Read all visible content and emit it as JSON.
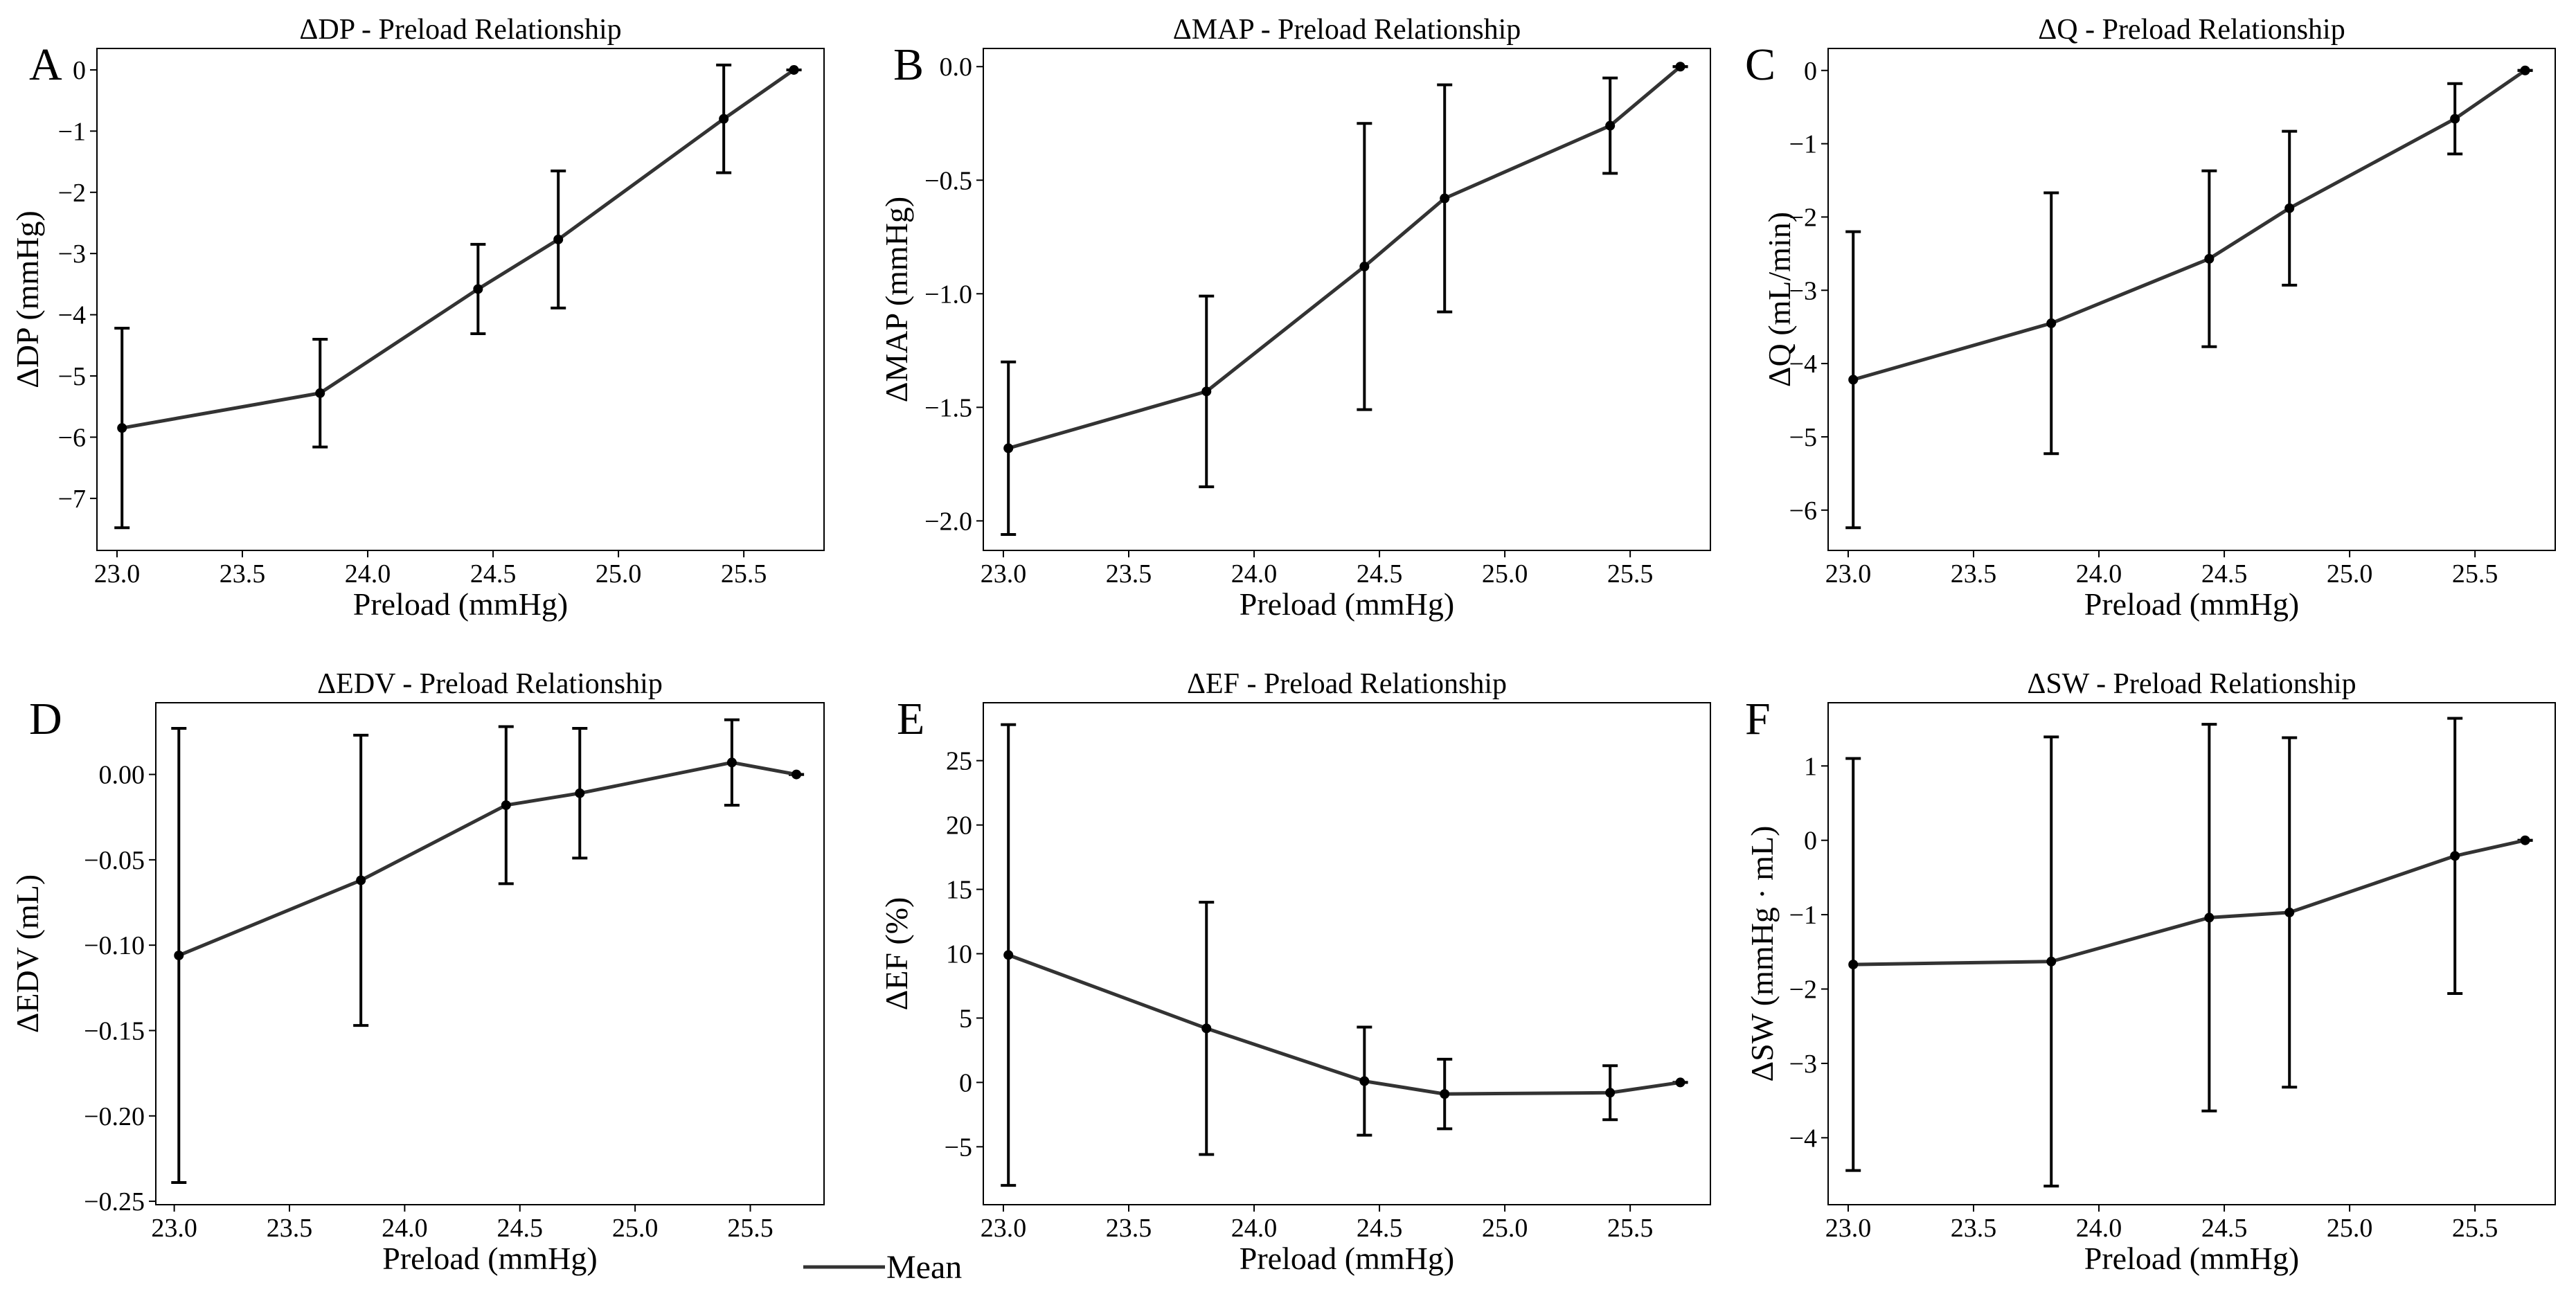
{
  "figure": {
    "legend": {
      "label": "Mean",
      "color": "#333333"
    },
    "line_color": "#333333",
    "errorbar_color": "#000000"
  },
  "chart_data": [
    {
      "panel": "A",
      "type": "line",
      "title": "ΔDP - Preload Relationship",
      "xlabel": "Preload  (mmHg)",
      "ylabel": "ΔDP (mmHg)",
      "x": [
        23.02,
        23.81,
        24.44,
        24.76,
        25.42,
        25.7
      ],
      "y": [
        -5.85,
        -5.28,
        -3.58,
        -2.77,
        -0.8,
        0.0
      ],
      "yerr": [
        1.63,
        0.88,
        0.73,
        1.12,
        0.88,
        0.0
      ],
      "xlim": [
        22.92,
        25.82
      ],
      "ylim": [
        -7.85,
        0.35
      ],
      "xticks": [
        23.0,
        23.5,
        24.0,
        24.5,
        25.0,
        25.5
      ],
      "xtick_labels": [
        "23.0",
        "23.5",
        "24.0",
        "24.5",
        "25.0",
        "25.5"
      ],
      "yticks": [
        0,
        -1,
        -2,
        -3,
        -4,
        -5,
        -6,
        -7
      ],
      "ytick_labels": [
        "0",
        "−1",
        "−2",
        "−3",
        "−4",
        "−5",
        "−6",
        "−7"
      ]
    },
    {
      "panel": "B",
      "type": "line",
      "title": "ΔMAP - Preload Relationship",
      "xlabel": "Preload (mmHg)",
      "ylabel": "ΔMAP (mmHg)",
      "x": [
        23.02,
        23.81,
        24.44,
        24.76,
        25.42,
        25.7
      ],
      "y": [
        -1.68,
        -1.43,
        -0.88,
        -0.58,
        -0.26,
        0.0
      ],
      "yerr": [
        0.38,
        0.42,
        0.63,
        0.5,
        0.21,
        0.0
      ],
      "xlim": [
        22.92,
        25.82
      ],
      "ylim": [
        -2.13,
        0.08
      ],
      "xticks": [
        23.0,
        23.5,
        24.0,
        24.5,
        25.0,
        25.5
      ],
      "xtick_labels": [
        "23.0",
        "23.5",
        "24.0",
        "24.5",
        "25.0",
        "25.5"
      ],
      "yticks": [
        0.0,
        -0.5,
        -1.0,
        -1.5,
        -2.0
      ],
      "ytick_labels": [
        "0.0",
        "−0.5",
        "−1.0",
        "−1.5",
        "−2.0"
      ]
    },
    {
      "panel": "C",
      "type": "line",
      "title": "ΔQ - Preload Relationship",
      "xlabel": "Preload (mmHg)",
      "ylabel": "ΔQ (mL/min)",
      "x": [
        23.02,
        23.81,
        24.44,
        24.76,
        25.42,
        25.7
      ],
      "y": [
        -4.22,
        -3.45,
        -2.57,
        -1.88,
        -0.66,
        0.0
      ],
      "yerr": [
        2.02,
        1.78,
        1.2,
        1.05,
        0.48,
        0.0
      ],
      "xlim": [
        22.92,
        25.82
      ],
      "ylim": [
        -6.55,
        0.3
      ],
      "xticks": [
        23.0,
        23.5,
        24.0,
        24.5,
        25.0,
        25.5
      ],
      "xtick_labels": [
        "23.0",
        "23.5",
        "24.0",
        "24.5",
        "25.0",
        "25.5"
      ],
      "yticks": [
        0,
        -1,
        -2,
        -3,
        -4,
        -5,
        -6
      ],
      "ytick_labels": [
        "0",
        "−1",
        "−2",
        "−3",
        "−4",
        "−5",
        "−6"
      ]
    },
    {
      "panel": "D",
      "type": "line",
      "title": "ΔEDV - Preload Relationship",
      "xlabel": "Preload  (mmHg)",
      "ylabel": "ΔEDV (mL)",
      "x": [
        23.02,
        23.81,
        24.44,
        24.76,
        25.42,
        25.7
      ],
      "y": [
        -0.106,
        -0.062,
        -0.018,
        -0.011,
        0.007,
        0.0
      ],
      "yerr": [
        0.133,
        0.085,
        0.046,
        0.038,
        0.025,
        0.0
      ],
      "xlim": [
        22.92,
        25.82
      ],
      "ylim": [
        -0.252,
        0.042
      ],
      "xticks": [
        23.0,
        23.5,
        24.0,
        24.5,
        25.0,
        25.5
      ],
      "xtick_labels": [
        "23.0",
        "23.5",
        "24.0",
        "24.5",
        "25.0",
        "25.5"
      ],
      "yticks": [
        0.0,
        -0.05,
        -0.1,
        -0.15,
        -0.2,
        -0.25
      ],
      "ytick_labels": [
        "0.00",
        "−0.05",
        "−0.10",
        "−0.15",
        "−0.20",
        "−0.25"
      ]
    },
    {
      "panel": "E",
      "type": "line",
      "title": "ΔEF - Preload Relationship",
      "xlabel": "Preload  (mmHg)",
      "ylabel": "ΔEF (%)",
      "x": [
        23.02,
        23.81,
        24.44,
        24.76,
        25.42,
        25.7
      ],
      "y": [
        9.9,
        4.2,
        0.1,
        -0.9,
        -0.8,
        0.0
      ],
      "yerr": [
        17.9,
        9.8,
        4.2,
        2.7,
        2.1,
        0.0
      ],
      "xlim": [
        22.92,
        25.82
      ],
      "ylim": [
        -9.5,
        29.5
      ],
      "xticks": [
        23.0,
        23.5,
        24.0,
        24.5,
        25.0,
        25.5
      ],
      "xtick_labels": [
        "23.0",
        "23.5",
        "24.0",
        "24.5",
        "25.0",
        "25.5"
      ],
      "yticks": [
        25,
        20,
        15,
        10,
        5,
        0,
        -5
      ],
      "ytick_labels": [
        "25",
        "20",
        "15",
        "10",
        "5",
        "0",
        "−5"
      ]
    },
    {
      "panel": "F",
      "type": "line",
      "title": "ΔSW - Preload Relationship",
      "xlabel": "Preload (mmHg)",
      "ylabel": "ΔSW (mmHg · mL)",
      "x": [
        23.02,
        23.81,
        24.44,
        24.76,
        25.42,
        25.7
      ],
      "y": [
        -1.67,
        -1.63,
        -1.04,
        -0.97,
        -0.21,
        0.0
      ],
      "yerr": [
        2.77,
        3.02,
        2.6,
        2.35,
        1.85,
        0.0
      ],
      "xlim": [
        22.92,
        25.82
      ],
      "ylim": [
        -4.9,
        1.85
      ],
      "xticks": [
        23.0,
        23.5,
        24.0,
        24.5,
        25.0,
        25.5
      ],
      "xtick_labels": [
        "23.0",
        "23.5",
        "24.0",
        "24.5",
        "25.0",
        "25.5"
      ],
      "yticks": [
        1,
        0,
        -1,
        -2,
        -3,
        -4
      ],
      "ytick_labels": [
        "1",
        "0",
        "−1",
        "−2",
        "−3",
        "−4"
      ]
    }
  ]
}
